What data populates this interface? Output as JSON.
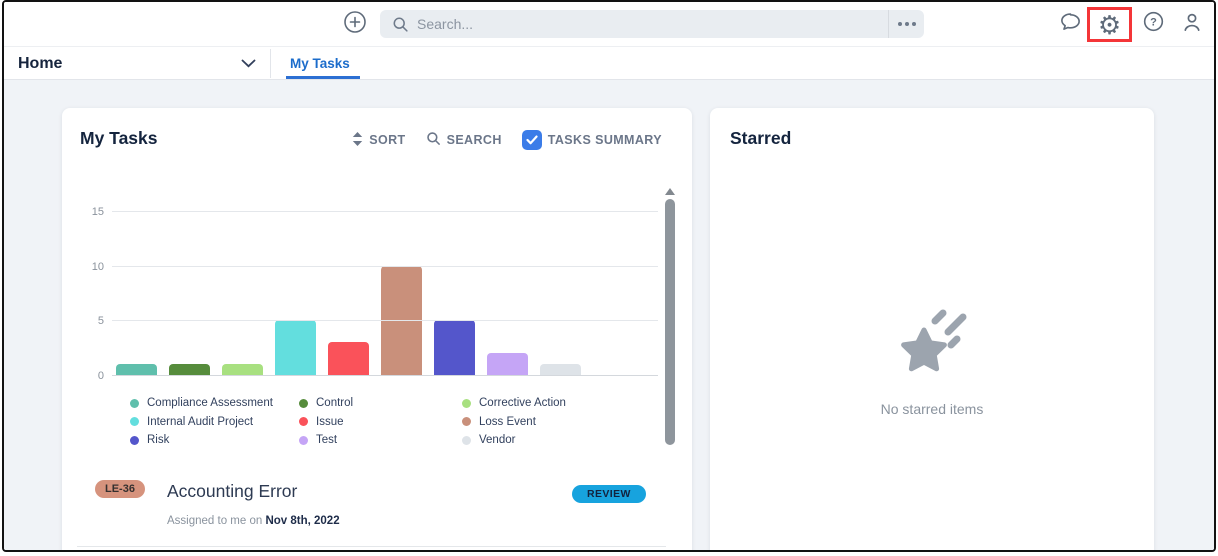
{
  "topbar": {
    "search_placeholder": "Search..."
  },
  "nav": {
    "home": "Home",
    "active_tab": "My Tasks"
  },
  "my_tasks": {
    "title": "My Tasks",
    "sort": "SORT",
    "search": "SEARCH",
    "tasks_summary": "TASKS SUMMARY",
    "task": {
      "id": "LE-36",
      "title": "Accounting Error",
      "assigned_prefix": "Assigned to me on ",
      "assigned_date": "Nov 8th, 2022",
      "status": "REVIEW"
    }
  },
  "starred": {
    "title": "Starred",
    "empty": "No starred items"
  },
  "chart_data": {
    "type": "bar",
    "categories": [
      "Compliance Assessment",
      "Control",
      "Corrective Action",
      "Internal Audit Project",
      "Issue",
      "Loss Event",
      "Risk",
      "Test",
      "Vendor"
    ],
    "values": [
      1,
      1,
      1,
      5,
      3,
      10,
      5,
      2,
      1
    ],
    "colors": [
      "#5FBFAC",
      "#568C3C",
      "#A8E080",
      "#63DEDE",
      "#FA525A",
      "#C9907B",
      "#5456CB",
      "#C5A5F6",
      "#DEE3E8"
    ],
    "title": "",
    "xlabel": "",
    "ylabel": "",
    "yticks": [
      0,
      5,
      10,
      15
    ],
    "ylim": [
      0,
      16.5
    ],
    "grid": true,
    "legend_position": "bottom"
  },
  "colors": {
    "accent_blue": "#2C6FD3",
    "checkbox_blue": "#3B7CE8",
    "status_blue": "#17A3DE",
    "task_id_bg": "#D6937D",
    "highlight_red": "#F43538"
  }
}
